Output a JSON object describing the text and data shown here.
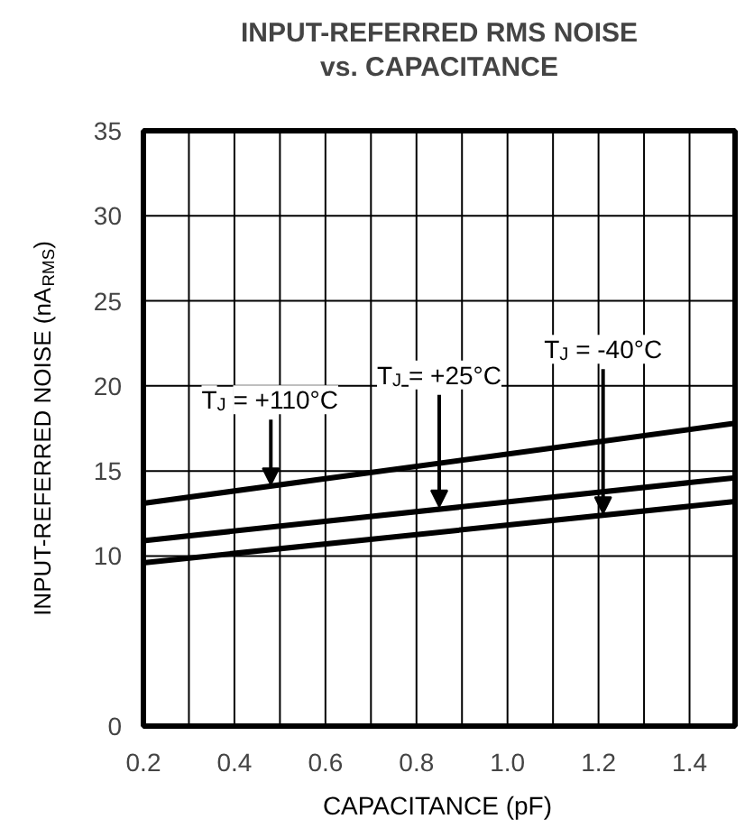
{
  "chart_data": {
    "type": "line",
    "title": "INPUT-REFERRED RMS NOISE\nvs. CAPACITANCE",
    "xlabel": "CAPACITANCE (pF)",
    "ylabel": "INPUT-REFERRED NOISE (nA$_{RMS}$)",
    "x": [
      0.2,
      1.5
    ],
    "series": [
      {
        "color": "#000000",
        "values": [
          13.1,
          17.8
        ]
      },
      {
        "color": "#000000",
        "values": [
          10.9,
          14.6
        ]
      },
      {
        "color": "#000000",
        "values": [
          9.6,
          13.2
        ]
      }
    ],
    "xlim": [
      0.2,
      1.5
    ],
    "ylim": [
      0,
      35
    ],
    "xticks": [
      0.2,
      {
        "value": 0.3,
        "label": null
      },
      0.4,
      {
        "value": 0.5,
        "label": null
      },
      0.6,
      {
        "value": 0.7,
        "label": null
      },
      0.8,
      {
        "value": 0.9,
        "label": null
      },
      {
        "value": 1.0,
        "label": "1.0"
      },
      {
        "value": 1.1,
        "label": null
      },
      1.2,
      {
        "value": 1.3,
        "label": null
      },
      1.4,
      {
        "value": 1.5,
        "label": null
      }
    ],
    "yticks": [
      0,
      10,
      15,
      20,
      25,
      30,
      35
    ],
    "grid": true,
    "marker": "none",
    "line_style": "solid",
    "annotations": [
      {
        "text": "T$_{J}$ = +110°C",
        "x": 0.48,
        "y": 14.2
      },
      {
        "text": "T$_{J}$ = +25°C",
        "x": 0.85,
        "y": 12.9
      },
      {
        "text": "T$_{J}$ = -40°C",
        "x": 1.21,
        "y": 12.5
      }
    ]
  }
}
